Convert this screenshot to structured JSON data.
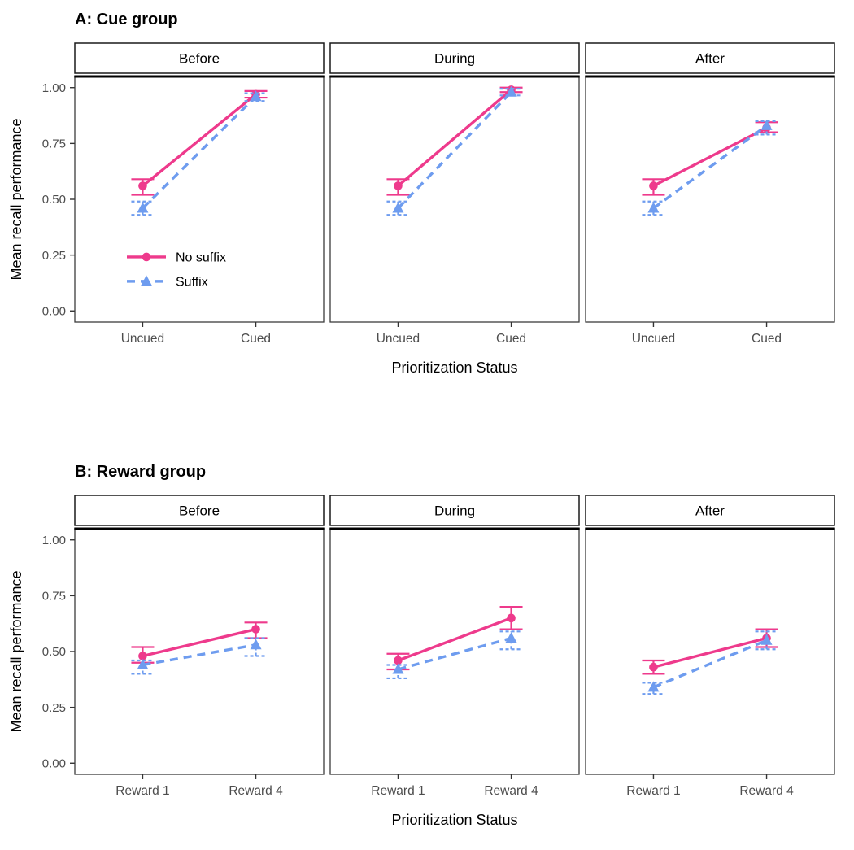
{
  "page": {
    "background": "#ffffff"
  },
  "theme": {
    "panel_border_color": "#3c3c3c",
    "panel_top_line_color": "#000000",
    "strip_border_color": "#1a1a1a",
    "strip_fill": "#ffffff",
    "tick_label_color": "#4d4d4d",
    "tick_mark_color": "#333333",
    "axis_title_color": "#000000",
    "series_pink": "#ee3a8c",
    "series_blue": "#6e9cef"
  },
  "chart_data": [
    {
      "type": "line",
      "title": "A: Cue group",
      "facets": [
        "Before",
        "During",
        "After"
      ],
      "categories": [
        "Uncued",
        "Cued"
      ],
      "xlabel": "Prioritization Status",
      "ylabel": "Mean recall performance",
      "ylim": [
        0,
        1
      ],
      "yticks": [
        {
          "value": 0.0,
          "label": "0.00"
        },
        {
          "value": 0.25,
          "label": "0.25"
        },
        {
          "value": 0.5,
          "label": "0.50"
        },
        {
          "value": 0.75,
          "label": "0.75"
        },
        {
          "value": 1.0,
          "label": "1.00"
        }
      ],
      "legend": {
        "show": true,
        "location": "inside-first-facet",
        "entries": [
          "No suffix",
          "Suffix"
        ]
      },
      "series": [
        {
          "name": "No suffix",
          "color": "#ee3a8c",
          "marker": "circle",
          "linestyle": "solid",
          "facets": [
            {
              "facet": "Before",
              "values": [
                0.56,
                0.97
              ],
              "err_lo": [
                0.52,
                0.955
              ],
              "err_hi": [
                0.59,
                0.985
              ]
            },
            {
              "facet": "During",
              "values": [
                0.56,
                0.99
              ],
              "err_lo": [
                0.52,
                0.98
              ],
              "err_hi": [
                0.59,
                1.0
              ]
            },
            {
              "facet": "After",
              "values": [
                0.56,
                0.82
              ],
              "err_lo": [
                0.52,
                0.8
              ],
              "err_hi": [
                0.59,
                0.845
              ]
            }
          ]
        },
        {
          "name": "Suffix",
          "color": "#6e9cef",
          "marker": "triangle",
          "linestyle": "dashed",
          "facets": [
            {
              "facet": "Before",
              "values": [
                0.46,
                0.96
              ],
              "err_lo": [
                0.43,
                0.94
              ],
              "err_hi": [
                0.49,
                0.975
              ]
            },
            {
              "facet": "During",
              "values": [
                0.46,
                0.98
              ],
              "err_lo": [
                0.43,
                0.965
              ],
              "err_hi": [
                0.49,
                0.995
              ]
            },
            {
              "facet": "After",
              "values": [
                0.46,
                0.83
              ],
              "err_lo": [
                0.43,
                0.79
              ],
              "err_hi": [
                0.49,
                0.85
              ]
            }
          ]
        }
      ]
    },
    {
      "type": "line",
      "title": "B: Reward group",
      "facets": [
        "Before",
        "During",
        "After"
      ],
      "categories": [
        "Reward 1",
        "Reward 4"
      ],
      "xlabel": "Prioritization Status",
      "ylabel": "Mean recall performance",
      "ylim": [
        0,
        1
      ],
      "yticks": [
        {
          "value": 0.0,
          "label": "0.00"
        },
        {
          "value": 0.25,
          "label": "0.25"
        },
        {
          "value": 0.5,
          "label": "0.50"
        },
        {
          "value": 0.75,
          "label": "0.75"
        },
        {
          "value": 1.0,
          "label": "1.00"
        }
      ],
      "legend": {
        "show": false,
        "entries": []
      },
      "series": [
        {
          "name": "No suffix",
          "color": "#ee3a8c",
          "marker": "circle",
          "linestyle": "solid",
          "facets": [
            {
              "facet": "Before",
              "values": [
                0.48,
                0.6
              ],
              "err_lo": [
                0.45,
                0.56
              ],
              "err_hi": [
                0.52,
                0.63
              ]
            },
            {
              "facet": "During",
              "values": [
                0.46,
                0.65
              ],
              "err_lo": [
                0.42,
                0.6
              ],
              "err_hi": [
                0.49,
                0.7
              ]
            },
            {
              "facet": "After",
              "values": [
                0.43,
                0.56
              ],
              "err_lo": [
                0.4,
                0.52
              ],
              "err_hi": [
                0.46,
                0.6
              ]
            }
          ]
        },
        {
          "name": "Suffix",
          "color": "#6e9cef",
          "marker": "triangle",
          "linestyle": "dashed",
          "facets": [
            {
              "facet": "Before",
              "values": [
                0.44,
                0.53
              ],
              "err_lo": [
                0.4,
                0.48
              ],
              "err_hi": [
                0.46,
                0.56
              ]
            },
            {
              "facet": "During",
              "values": [
                0.42,
                0.56
              ],
              "err_lo": [
                0.38,
                0.51
              ],
              "err_hi": [
                0.44,
                0.59
              ]
            },
            {
              "facet": "After",
              "values": [
                0.34,
                0.55
              ],
              "err_lo": [
                0.31,
                0.51
              ],
              "err_hi": [
                0.36,
                0.59
              ]
            }
          ]
        }
      ]
    }
  ]
}
